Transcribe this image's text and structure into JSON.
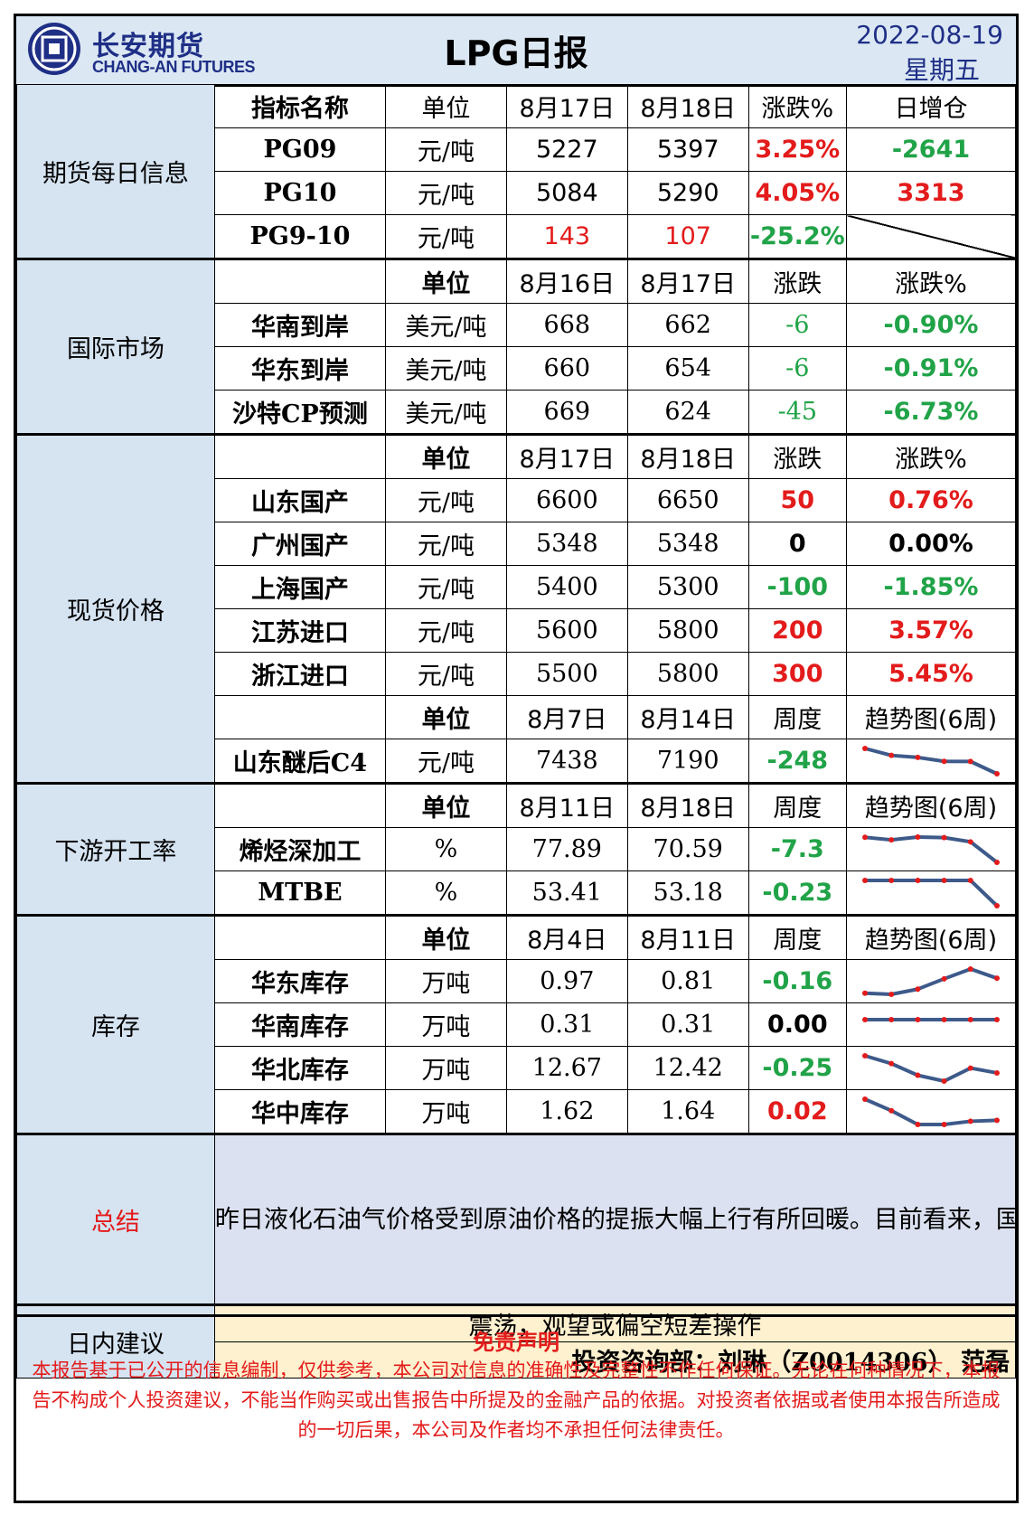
{
  "header": {
    "logo_cn": "长安期货",
    "logo_en": "CHANG-AN FUTURES",
    "title": "LPG日报",
    "date": "2022-08-19",
    "weekday": "星期五"
  },
  "futures": {
    "section": "期货每日信息",
    "head": [
      "指标名称",
      "单位",
      "8月17日",
      "8月18日",
      "涨跌%",
      "日增仓"
    ],
    "rows": [
      {
        "name": "PG09",
        "unit": "元/吨",
        "v1": "5227",
        "v2": "5397",
        "chg": "3.25%",
        "pos": "-2641"
      },
      {
        "name": "PG10",
        "unit": "元/吨",
        "v1": "5084",
        "v2": "5290",
        "chg": "4.05%",
        "pos": "3313"
      },
      {
        "name": "PG9-10",
        "unit": "元/吨",
        "v1": "143",
        "v2": "107",
        "chg": "-25.2%",
        "pos": ""
      }
    ]
  },
  "intl": {
    "section": "国际市场",
    "head": [
      "单位",
      "8月16日",
      "8月17日",
      "涨跌",
      "涨跌%"
    ],
    "rows": [
      {
        "name": "华南到岸",
        "unit": "美元/吨",
        "v1": "668",
        "v2": "662",
        "chg": "-6",
        "pct": "-0.90%"
      },
      {
        "name": "华东到岸",
        "unit": "美元/吨",
        "v1": "660",
        "v2": "654",
        "chg": "-6",
        "pct": "-0.91%"
      },
      {
        "name": "沙特CP预测",
        "unit": "美元/吨",
        "v1": "669",
        "v2": "624",
        "chg": "-45",
        "pct": "-6.73%"
      }
    ]
  },
  "spot": {
    "section": "现货价格",
    "head": [
      "单位",
      "8月17日",
      "8月18日",
      "涨跌",
      "涨跌%"
    ],
    "rows": [
      {
        "name": "山东国产",
        "unit": "元/吨",
        "v1": "6600",
        "v2": "6650",
        "chg": "50",
        "pct": "0.76%"
      },
      {
        "name": "广州国产",
        "unit": "元/吨",
        "v1": "5348",
        "v2": "5348",
        "chg": "0",
        "pct": "0.00%"
      },
      {
        "name": "上海国产",
        "unit": "元/吨",
        "v1": "5400",
        "v2": "5300",
        "chg": "-100",
        "pct": "-1.85%"
      },
      {
        "name": "江苏进口",
        "unit": "元/吨",
        "v1": "5600",
        "v2": "5800",
        "chg": "200",
        "pct": "3.57%"
      },
      {
        "name": "浙江进口",
        "unit": "元/吨",
        "v1": "5500",
        "v2": "5800",
        "chg": "300",
        "pct": "5.45%"
      }
    ],
    "head2": [
      "单位",
      "8月7日",
      "8月14日",
      "周度",
      "趋势图(6周)"
    ],
    "c4": {
      "name": "山东醚后C4",
      "unit": "元/吨",
      "v1": "7438",
      "v2": "7190",
      "chg": "-248",
      "trend": [
        7700,
        7560,
        7520,
        7440,
        7438,
        7190
      ]
    }
  },
  "downstream": {
    "section": "下游开工率",
    "head": [
      "单位",
      "8月11日",
      "8月18日",
      "周度",
      "趋势图(6周)"
    ],
    "rows": [
      {
        "name": "烯烃深加工",
        "unit": "%",
        "v1": "77.89",
        "v2": "70.59",
        "chg": "-7.3",
        "trend": [
          79.5,
          78.6,
          79.6,
          79.4,
          77.89,
          70.59
        ]
      },
      {
        "name": "MTBE",
        "unit": "%",
        "v1": "53.41",
        "v2": "53.18",
        "chg": "-0.23",
        "trend": [
          53.41,
          53.41,
          53.41,
          53.41,
          53.41,
          53.18
        ]
      }
    ]
  },
  "stock": {
    "section": "库存",
    "head": [
      "单位",
      "8月4日",
      "8月11日",
      "周度",
      "趋势图(6周)"
    ],
    "rows": [
      {
        "name": "华东库存",
        "unit": "万吨",
        "v1": "0.97",
        "v2": "0.81",
        "chg": "-0.16",
        "trend": [
          0.55,
          0.53,
          0.62,
          0.8,
          0.97,
          0.81
        ]
      },
      {
        "name": "华南库存",
        "unit": "万吨",
        "v1": "0.31",
        "v2": "0.31",
        "chg": "0.00",
        "trend": [
          0.31,
          0.31,
          0.31,
          0.31,
          0.31,
          0.31
        ]
      },
      {
        "name": "华北库存",
        "unit": "万吨",
        "v1": "12.67",
        "v2": "12.42",
        "chg": "-0.25",
        "trend": [
          13.3,
          12.9,
          12.3,
          12.0,
          12.67,
          12.42
        ]
      },
      {
        "name": "华中库存",
        "unit": "万吨",
        "v1": "1.62",
        "v2": "1.64",
        "chg": "0.02",
        "trend": [
          2.1,
          1.85,
          1.55,
          1.55,
          1.62,
          1.64
        ]
      }
    ]
  },
  "summary": {
    "section": "总结",
    "text": "昨日液化石油气价格受到原油价格的提振大幅上行有所回暖。目前看来，国际到岸价有所下调的情况下进口成本仍旧高企，或导致国内市场供给偏紧；而国内下游需求方面，部分工厂检修导致开工率有所下调，同时高温持续利空民用需求，需求难以形成支撑。整体看来，短期内液化石油气仍旧难改自身供需双弱的局面，因此价格将维持跟随油价的行情，日内或呈现宽幅震荡的走势，期间可持续留意月间价差结构的持续性回调。"
  },
  "advice": {
    "section": "日内建议",
    "text": "震荡，观望或偏空短差操作",
    "author": "投资咨询部：刘琳（Z0014306） 范磊"
  },
  "disclaimer": {
    "title": "免责声明",
    "text": "本报告基于已公开的信息编制，仅供参考，本公司对信息的准确性及完整性不作任何保证。无论在何种情况下，本报告不构成个人投资建议，不能当作购买或出售报告中所提及的金融产品的依据。对投资者依据或者使用本报告所造成的一切后果，本公司及作者均不承担任何法律责任。"
  },
  "colors": {
    "up": "#e31b1b",
    "down": "#21a348",
    "trend_line": "#3d5a8a",
    "trend_dot": "#e31b1b"
  }
}
